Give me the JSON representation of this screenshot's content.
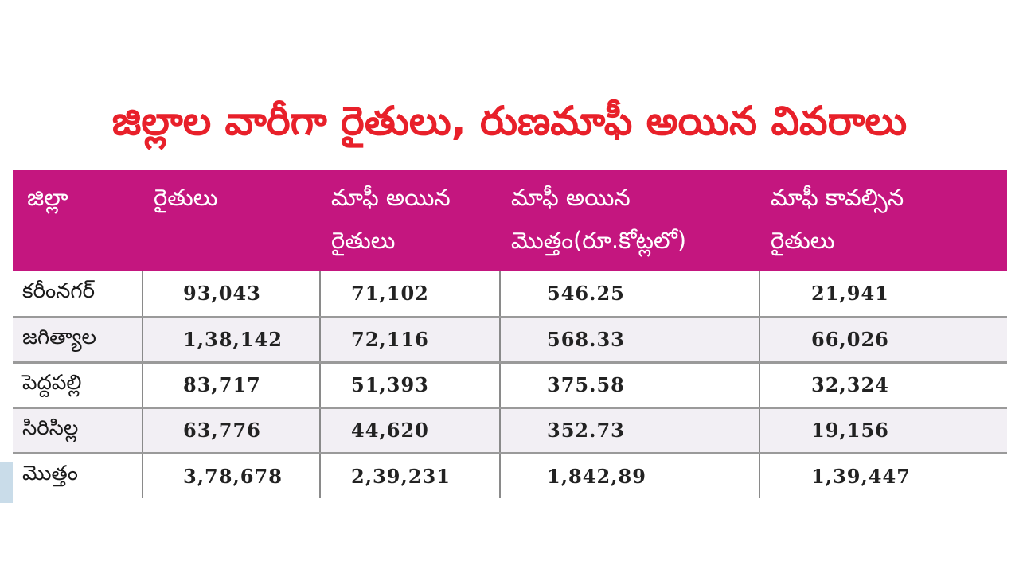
{
  "title": "జిల్లాల వారీగా రైతులు, రుణమాఫీ అయిన వివరాలు",
  "table": {
    "headers": [
      [
        "జిల్లా"
      ],
      [
        "రైతులు"
      ],
      [
        "మాఫీ అయిన",
        "రైతులు"
      ],
      [
        "మాఫీ అయిన",
        "మొత్తం(రూ.కోట్లలో)"
      ],
      [
        "మాఫీ కావల్సిన",
        "రైతులు"
      ]
    ],
    "rows": [
      [
        "కరీంనగర్",
        "93,043",
        "71,102",
        "546.25",
        "21,941"
      ],
      [
        "జగిత్యాల",
        "1,38,142",
        "72,116",
        "568.33",
        "66,026"
      ],
      [
        "పెద్దపల్లి",
        "83,717",
        "51,393",
        "375.58",
        "32,324"
      ],
      [
        "సిరిసిల్ల",
        "63,776",
        "44,620",
        "352.73",
        "19,156"
      ],
      [
        "మొత్తం",
        "3,78,678",
        "2,39,231",
        "1,842,89",
        "1,39,447"
      ]
    ]
  },
  "colors": {
    "title": "#e8202a",
    "header_bg": "#c4167f",
    "header_text": "#ffffff",
    "row_alt": "#f2eff4"
  }
}
